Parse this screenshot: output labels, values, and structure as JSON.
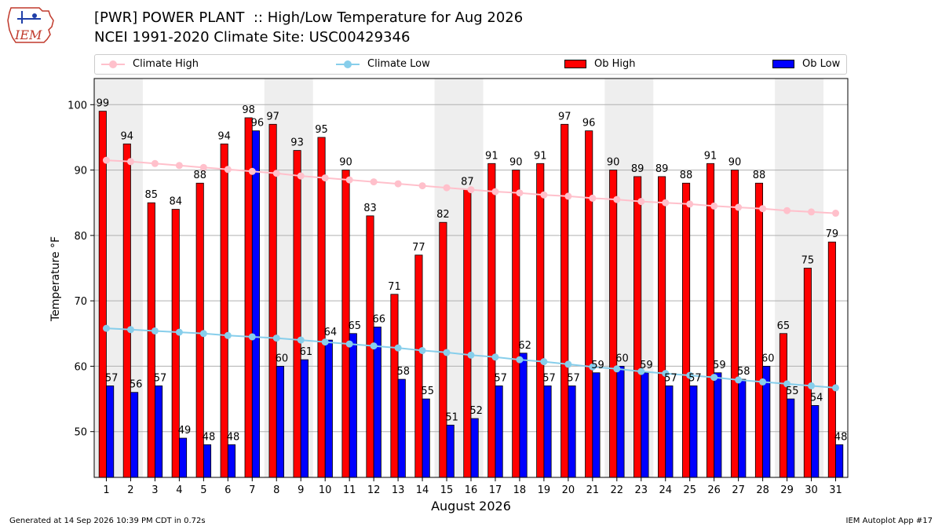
{
  "title": "[PWR] POWER PLANT  :: High/Low Temperature for Aug 2026",
  "subtitle": "NCEI 1991-2020 Climate Site: USC00429346",
  "logo_text": "IEM",
  "footer_left": "Generated at 14 Sep 2026 10:39 PM CDT in 0.72s",
  "footer_right": "IEM Autoplot App #17",
  "legend": [
    {
      "label": "Climate High",
      "kind": "line",
      "color": "#ffc0cb"
    },
    {
      "label": "Climate Low",
      "kind": "line",
      "color": "#87ceeb"
    },
    {
      "label": "Ob High",
      "kind": "bar",
      "color": "#ff0000"
    },
    {
      "label": "Ob Low",
      "kind": "bar",
      "color": "#0000ff"
    }
  ],
  "chart_data": {
    "type": "bar",
    "xlabel": "August 2026",
    "ylabel": "Temperature °F",
    "ylim": [
      43,
      104
    ],
    "yticks": [
      50,
      60,
      70,
      80,
      90,
      100
    ],
    "grid": true,
    "legend_position": "top",
    "categories": [
      "1",
      "2",
      "3",
      "4",
      "5",
      "6",
      "7",
      "8",
      "9",
      "10",
      "11",
      "12",
      "13",
      "14",
      "15",
      "16",
      "17",
      "18",
      "19",
      "20",
      "21",
      "22",
      "23",
      "24",
      "25",
      "26",
      "27",
      "28",
      "29",
      "30",
      "31"
    ],
    "weekend_shading": [
      [
        1,
        2
      ],
      [
        8,
        9
      ],
      [
        15,
        16
      ],
      [
        22,
        23
      ],
      [
        29,
        30
      ]
    ],
    "series": [
      {
        "name": "Ob High",
        "color": "#ff0000",
        "values": [
          99,
          94,
          85,
          84,
          88,
          94,
          98,
          97,
          93,
          95,
          90,
          83,
          71,
          77,
          82,
          87,
          91,
          90,
          91,
          97,
          96,
          90,
          89,
          89,
          88,
          91,
          90,
          88,
          65,
          75,
          79
        ]
      },
      {
        "name": "Ob Low",
        "color": "#0000ff",
        "values": [
          57,
          56,
          57,
          49,
          48,
          48,
          96,
          60,
          61,
          64,
          65,
          66,
          58,
          55,
          51,
          52,
          57,
          62,
          57,
          57,
          59,
          60,
          59,
          57,
          57,
          59,
          58,
          60,
          55,
          54,
          48
        ]
      },
      {
        "name": "Climate High",
        "color": "#ffc0cb",
        "values": [
          91.5,
          91.3,
          91.0,
          90.7,
          90.4,
          90.1,
          89.8,
          89.5,
          89.1,
          88.8,
          88.5,
          88.2,
          87.9,
          87.6,
          87.3,
          87.0,
          86.7,
          86.5,
          86.2,
          86.0,
          85.7,
          85.5,
          85.2,
          85.0,
          84.8,
          84.5,
          84.3,
          84.1,
          83.8,
          83.6,
          83.4
        ]
      },
      {
        "name": "Climate Low",
        "color": "#87ceeb",
        "values": [
          65.8,
          65.6,
          65.4,
          65.2,
          65.0,
          64.7,
          64.5,
          64.3,
          64.0,
          63.7,
          63.4,
          63.1,
          62.8,
          62.4,
          62.1,
          61.7,
          61.4,
          61.0,
          60.7,
          60.3,
          59.9,
          59.6,
          59.2,
          58.9,
          58.6,
          58.3,
          57.9,
          57.6,
          57.3,
          57.0,
          56.7
        ]
      }
    ]
  }
}
